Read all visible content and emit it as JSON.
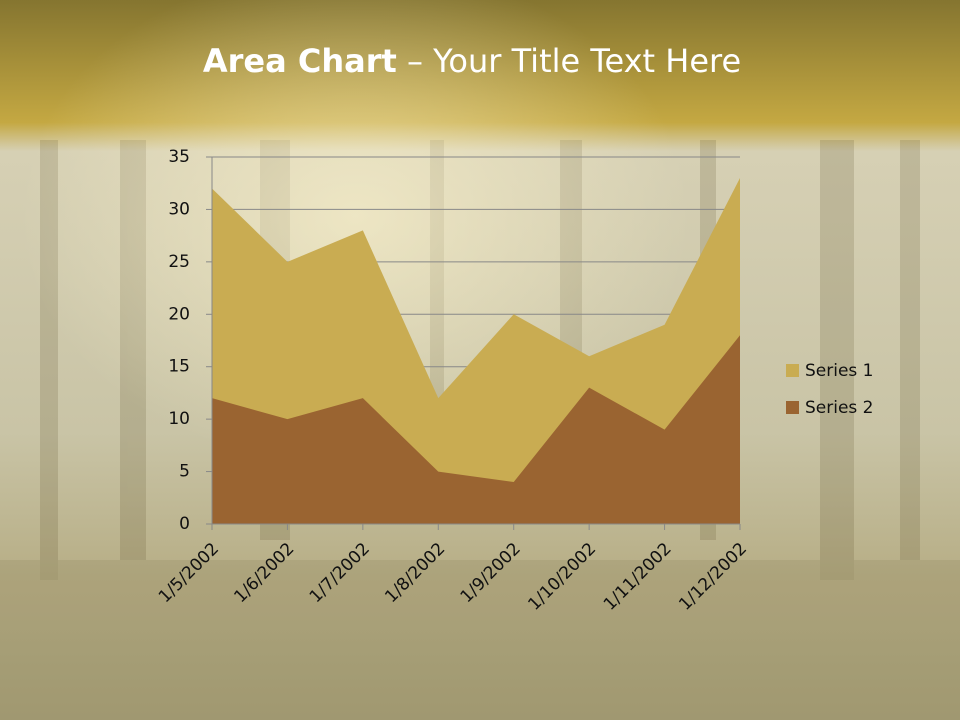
{
  "chart_data": {
    "type": "area",
    "title": {
      "bold": "Area Chart",
      "rest": "– Your Title Text Here"
    },
    "categories": [
      "1/5/2002",
      "1/6/2002",
      "1/7/2002",
      "1/8/2002",
      "1/9/2002",
      "1/10/2002",
      "1/11/2002",
      "1/12/2002"
    ],
    "series": [
      {
        "name": "Series 1",
        "color": "#c9ac52",
        "values": [
          32,
          25,
          28,
          12,
          20,
          16,
          19,
          33
        ]
      },
      {
        "name": "Series 2",
        "color": "#9a6431",
        "values": [
          12,
          10,
          12,
          5,
          4,
          13,
          9,
          18
        ]
      }
    ],
    "ylim": [
      0,
      35
    ],
    "yticks": [
      0,
      5,
      10,
      15,
      20,
      25,
      30,
      35
    ],
    "grid": true,
    "legend": "right"
  }
}
